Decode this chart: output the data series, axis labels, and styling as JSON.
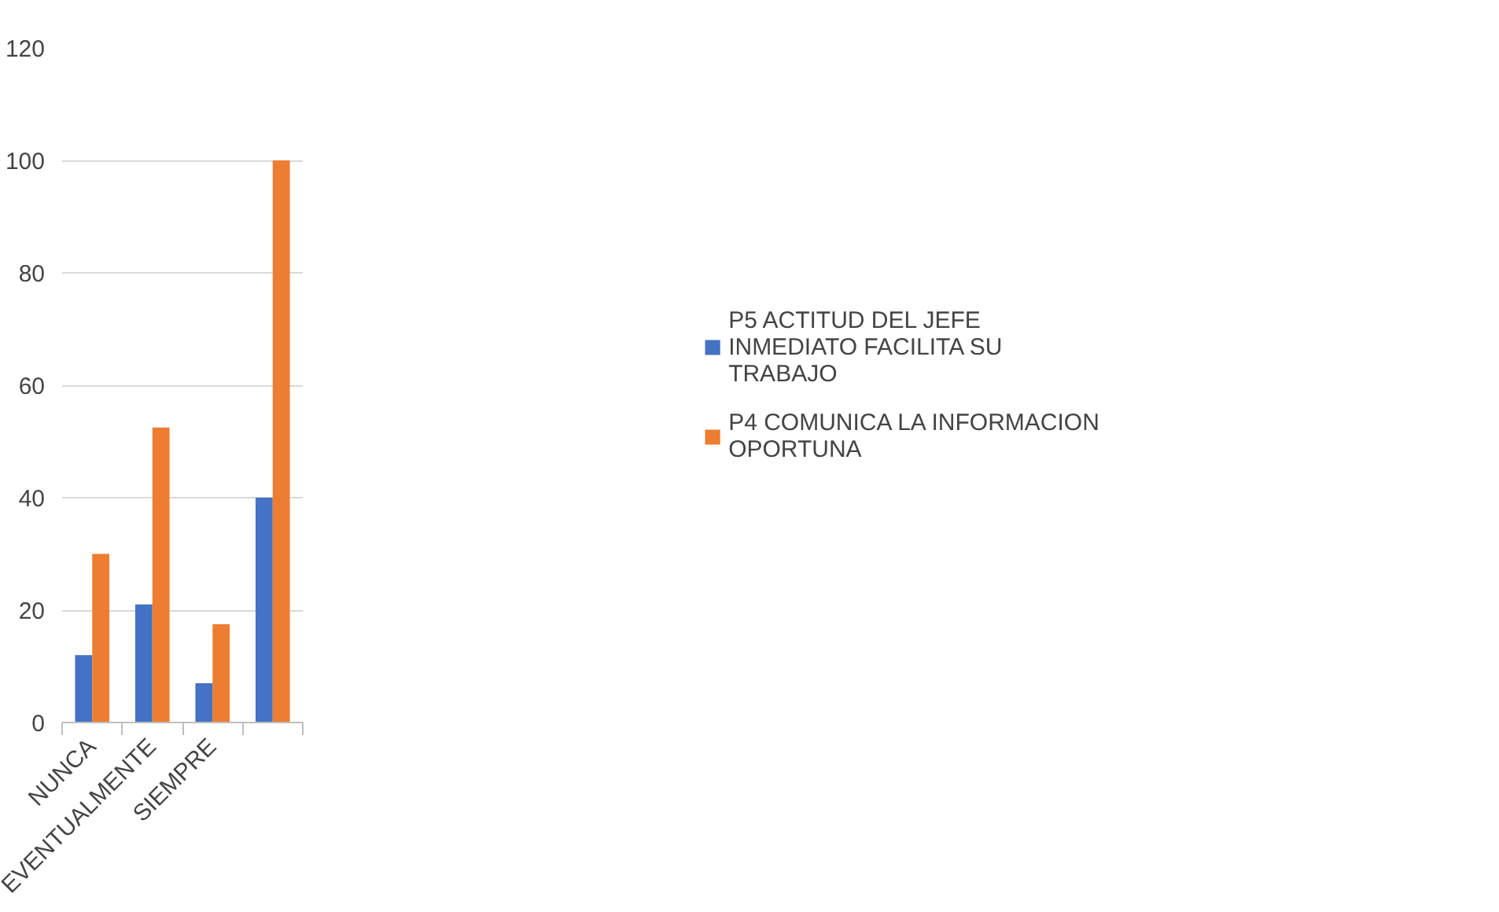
{
  "chart_data": {
    "type": "bar",
    "categories": [
      "NUNCA",
      "EVENTUALMENTE",
      "SIEMPRE",
      null
    ],
    "series": [
      {
        "name": "P5 ACTITUD DEL JEFE INMEDIATO FACILITA SU TRABAJO",
        "color": "#4472c4",
        "values": [
          12,
          21,
          7,
          40
        ]
      },
      {
        "name": "P4 COMUNICA LA INFORMACION OPORTUNA",
        "color": "#ed7d31",
        "values": [
          30,
          52.5,
          17.5,
          100
        ]
      }
    ],
    "ylim": [
      0,
      120
    ],
    "yticks": [
      0,
      20,
      40,
      60,
      80,
      100,
      120
    ],
    "grid": "y",
    "legend": "right"
  }
}
